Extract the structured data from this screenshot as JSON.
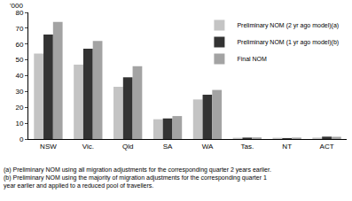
{
  "chart_data": {
    "type": "bar",
    "ylabel": "'000",
    "categories": [
      "NSW",
      "Vic.",
      "Qld",
      "SA",
      "WA",
      "Tas.",
      "NT",
      "ACT"
    ],
    "series": [
      {
        "name": "Preliminary NOM (2 yr ago model)(a)",
        "color": "#c4c4c4",
        "values": [
          54,
          47,
          33,
          12.5,
          25,
          0.8,
          0.8,
          0.9
        ]
      },
      {
        "name": "Preliminary NOM (1 yr ago model)(b)",
        "color": "#333333",
        "values": [
          66,
          57,
          39,
          13,
          28,
          0.9,
          0.6,
          1.5
        ]
      },
      {
        "name": "Final NOM",
        "color": "#a3a3a3",
        "values": [
          74,
          62,
          46,
          14.5,
          31,
          1.0,
          0.9,
          1.4
        ]
      }
    ],
    "ylim": [
      0,
      80
    ],
    "yticks": [
      0,
      10,
      20,
      30,
      40,
      50,
      60,
      70,
      80
    ],
    "grid": false,
    "legend": "top-right",
    "footnotes": [
      "(a) Preliminary NOM using all migration adjustments for the corresponding quarter 2 years earlier.",
      "(b) Preliminary NOM using the majority of migration adjustments for the corresponding quarter 1",
      "year earlier and applied to a reduced pool of travellers."
    ]
  }
}
